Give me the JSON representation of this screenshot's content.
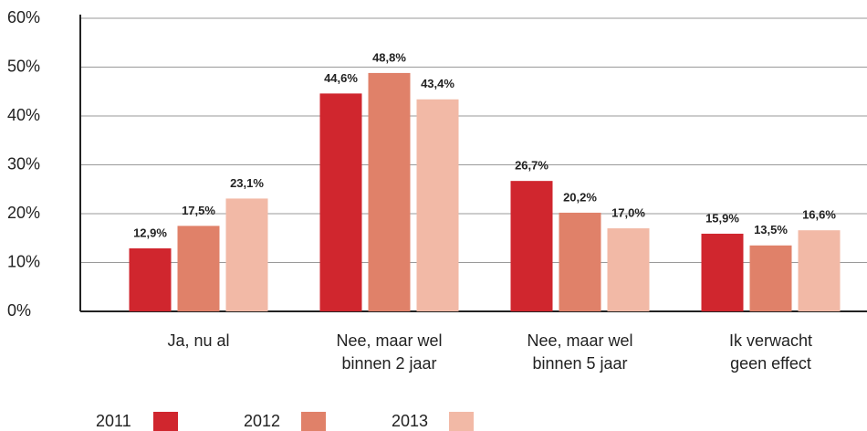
{
  "chart_data": {
    "type": "bar",
    "categories": [
      "Ja, nu al",
      "Nee, maar wel\nbinnen 2 jaar",
      "Nee, maar wel\nbinnen 5 jaar",
      "Ik verwacht\ngeen effect"
    ],
    "series": [
      {
        "name": "2011",
        "color": "#d0262e",
        "values": [
          12.9,
          44.6,
          26.7,
          15.9
        ],
        "value_labels": [
          "12,9%",
          "44,6%",
          "26,7%",
          "15,9%"
        ]
      },
      {
        "name": "2012",
        "color": "#e08169",
        "values": [
          17.5,
          48.8,
          20.2,
          13.5
        ],
        "value_labels": [
          "17,5%",
          "48,8%",
          "20,2%",
          "13,5%"
        ]
      },
      {
        "name": "2013",
        "color": "#f2b9a6",
        "values": [
          23.1,
          43.4,
          17.0,
          16.6
        ],
        "value_labels": [
          "23,1%",
          "43,4%",
          "17,0%",
          "16,6%"
        ]
      }
    ],
    "ylim": [
      0,
      60
    ],
    "yticks": [
      {
        "value": 0,
        "label": "0%"
      },
      {
        "value": 10,
        "label": "10%"
      },
      {
        "value": 20,
        "label": "20%"
      },
      {
        "value": 30,
        "label": "30%"
      },
      {
        "value": 40,
        "label": "40%"
      },
      {
        "value": 50,
        "label": "50%"
      },
      {
        "value": 60,
        "label": "60%"
      }
    ],
    "grid": true
  }
}
